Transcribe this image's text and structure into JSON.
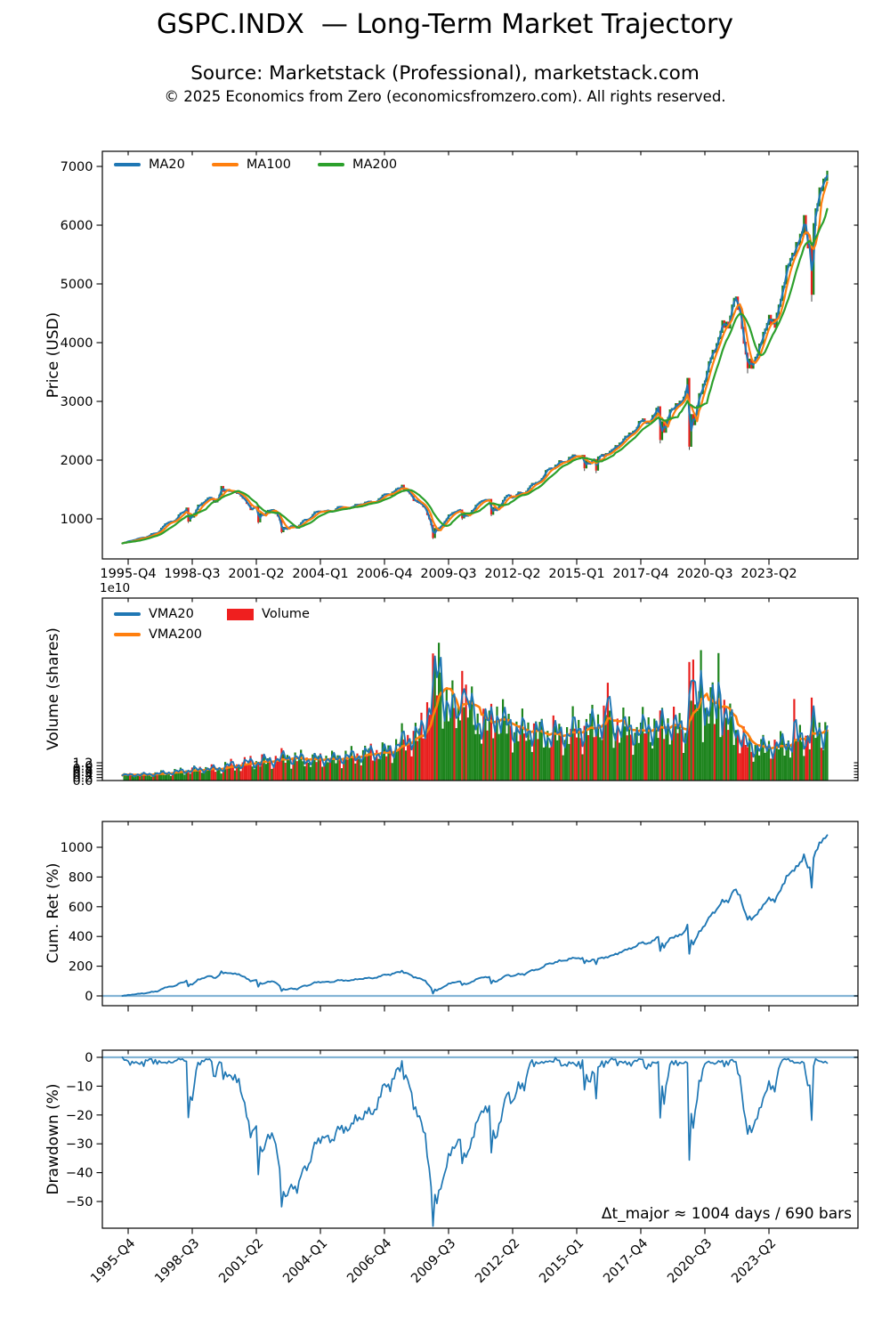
{
  "header": {
    "title": "GSPC.INDX  — Long-Term Market Trajectory",
    "subtitle": "Source: Marketstack (Professional), marketstack.com",
    "copyright": "© 2025 Economics from Zero (economicsfromzero.com). All rights reserved."
  },
  "colors": {
    "ma20": "#1f77b4",
    "ma100": "#ff7f0e",
    "ma200": "#2ca02c",
    "candle_up": "#1d841d",
    "candle_down": "#e8201e",
    "volume_up": "#1d841d",
    "volume_down": "#e8201e",
    "volume_legend_patch": "#ef1f1f",
    "line_blue": "#1f77b4",
    "zero_line_blue": "#1f77b4",
    "axis": "#000000"
  },
  "x_axis": {
    "tick_labels": [
      "1995-Q4",
      "1998-Q3",
      "2001-Q2",
      "2004-Q1",
      "2006-Q4",
      "2009-Q3",
      "2012-Q2",
      "2015-Q1",
      "2017-Q4",
      "2020-Q3",
      "2023-Q2"
    ]
  },
  "chart_data": [
    {
      "id": "price",
      "type": "candlestick",
      "ylabel": "Price (USD)",
      "yticks": [
        1000,
        2000,
        3000,
        4000,
        5000,
        6000,
        7000
      ],
      "ytick_labels": [
        "1000",
        "2000",
        "3000",
        "4000",
        "5000",
        "6000",
        "7000"
      ],
      "legend": [
        {
          "label": "MA20",
          "color": "#1f77b4"
        },
        {
          "label": "MA100",
          "color": "#ff7f0e"
        },
        {
          "label": "MA200",
          "color": "#2ca02c"
        }
      ],
      "series_start_quarter": "1995-Q3",
      "closes": [
        584,
        616,
        645,
        671,
        687,
        741,
        757,
        885,
        947,
        970,
        1101,
        1134,
        1017,
        1229,
        1286,
        1373,
        1283,
        1469,
        1498,
        1454,
        1436,
        1320,
        1160,
        1224,
        1041,
        1148,
        1147,
        990,
        815,
        880,
        848,
        975,
        996,
        1112,
        1126,
        1141,
        1115,
        1212,
        1181,
        1191,
        1229,
        1248,
        1295,
        1270,
        1336,
        1418,
        1421,
        1503,
        1527,
        1468,
        1323,
        1280,
        1166,
        903,
        798,
        919,
        1057,
        1115,
        1169,
        1031,
        1141,
        1258,
        1326,
        1321,
        1131,
        1258,
        1408,
        1362,
        1441,
        1426,
        1569,
        1606,
        1682,
        1848,
        1872,
        1960,
        1972,
        2059,
        2068,
        2063,
        1920,
        2044,
        2060,
        2099,
        2168,
        2239,
        2363,
        2423,
        2519,
        2674,
        2641,
        2718,
        2914,
        2507,
        2834,
        2942,
        2977,
        3231,
        2585,
        3100,
        3363,
        3756,
        3973,
        4298,
        4308,
        4766,
        4530,
        3785,
        3586,
        3840,
        4109,
        4450,
        4288,
        4770,
        5254,
        5460,
        5762,
        5882,
        5612,
        6205,
        6688,
        6900
      ],
      "quarter_highs": {
        "1998-Q3": 1187,
        "2000-Q1": 1553,
        "2007-Q4": 1576,
        "2020-Q1": 3386,
        "2025-Q1": 6147
      },
      "quarter_lows": {
        "1998-Q3": 957,
        "2001-Q3": 945,
        "2002-Q3": 776,
        "2009-Q1": 676,
        "2010-Q2": 1011,
        "2011-Q3": 1075,
        "2015-Q3": 1867,
        "2016-Q1": 1829,
        "2018-Q4": 2351,
        "2020-Q1": 2237,
        "2022-Q3": 3577,
        "2025-Q2": 4835
      }
    },
    {
      "id": "volume",
      "type": "bar",
      "ylabel": "Volume (shares)",
      "offset_text": "1e10",
      "yticks": [
        0.0,
        0.2,
        0.4,
        0.6,
        0.8,
        1.0,
        1.2
      ],
      "ytick_labels": [
        "0.0",
        "0.2",
        "0.4",
        "0.6",
        "0.8",
        "1.0",
        "1.2"
      ],
      "legend": [
        {
          "label": "VMA20",
          "color": "#1f77b4"
        },
        {
          "label": "VMA200",
          "color": "#ff7f0e"
        },
        {
          "label": "Volume",
          "color": "#ef1f1f",
          "patch": true
        }
      ],
      "shares_billions": [
        0.35,
        0.36,
        0.4,
        0.41,
        0.4,
        0.43,
        0.47,
        0.5,
        0.54,
        0.58,
        0.62,
        0.66,
        0.74,
        0.7,
        0.78,
        0.8,
        0.76,
        0.84,
        1.04,
        1.0,
        1.06,
        1.16,
        1.24,
        1.18,
        1.32,
        1.36,
        1.34,
        1.42,
        1.66,
        1.46,
        1.42,
        1.5,
        1.38,
        1.4,
        1.48,
        1.44,
        1.4,
        1.52,
        1.6,
        1.58,
        1.64,
        1.7,
        1.84,
        1.92,
        1.78,
        1.88,
        2.1,
        2.32,
        2.62,
        2.72,
        3.1,
        3.0,
        3.9,
        6.4,
        6.6,
        6.0,
        5.0,
        4.4,
        4.3,
        5.3,
        4.4,
        4.0,
        3.9,
        3.8,
        4.7,
        3.9,
        3.7,
        3.6,
        3.3,
        3.3,
        3.4,
        3.3,
        3.1,
        3.0,
        3.2,
        3.0,
        3.1,
        3.4,
        3.4,
        3.3,
        3.7,
        3.6,
        4.1,
        3.8,
        3.5,
        3.8,
        3.4,
        3.4,
        3.2,
        3.3,
        3.7,
        3.5,
        3.3,
        4.1,
        3.7,
        3.5,
        3.4,
        3.3,
        5.6,
        4.9,
        4.3,
        4.8,
        5.1,
        4.3,
        3.7,
        4.0,
        2.8,
        2.4,
        2.3,
        2.2,
        2.2,
        2.3,
        2.2,
        2.4,
        2.6,
        2.5,
        2.7,
        2.9,
        3.0,
        3.2,
        3.2,
        3.4
      ],
      "bar_spikes_billions": {
        "2009-Q2": 9.3,
        "2010-Q2": 7.4,
        "2016-Q3": 6.6,
        "2020-Q1": 8.0,
        "2020-Q3": 8.8,
        "2021-Q2": 8.6,
        "2024-Q3": 5.5,
        "2025-Q2": 5.6
      }
    },
    {
      "id": "cumret",
      "type": "line",
      "ylabel": "Cum. Ret (%)",
      "yticks": [
        0,
        200,
        400,
        600,
        800,
        1000
      ],
      "ytick_labels": [
        "0",
        "200",
        "400",
        "600",
        "800",
        "1000"
      ],
      "baseline": 0,
      "end_value_pct": 1085
    },
    {
      "id": "drawdown",
      "type": "line",
      "ylabel": "Drawdown (%)",
      "yticks": [
        0,
        -10,
        -20,
        -30,
        -40,
        -50
      ],
      "ytick_labels": [
        "0",
        "−10",
        "−20",
        "−30",
        "−40",
        "−50"
      ],
      "baseline": 0,
      "min_value_pct": -57,
      "annotation": "Δt_major ≈ 1004 days / 690 bars"
    }
  ]
}
